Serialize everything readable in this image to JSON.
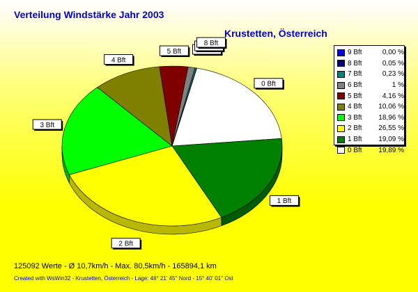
{
  "title": "Verteilung Windstärke  Jahr 2003",
  "subtitle": "Krustetten, Österreich",
  "stats": "125092 Werte   -   Ø 10,7km/h  -  Max. 80,5km/h   -    165894,1 km",
  "credit": "Created with WsWin32   -   Krustetten, Österreich   -   Lage: 48° 21' 45'' Nord - 15° 40' 01'' Ost",
  "chart_data": {
    "type": "pie",
    "title": "Verteilung Windstärke  Jahr 2003",
    "legend_position": "top-right",
    "slices": [
      {
        "label": "9 Bft",
        "value": 0.0,
        "pct_text": "0,00 %",
        "color": "#0000ff"
      },
      {
        "label": "8 Bft",
        "value": 0.05,
        "pct_text": "0,05 %",
        "color": "#000080"
      },
      {
        "label": "7 Bft",
        "value": 0.23,
        "pct_text": "0,23 %",
        "color": "#008080"
      },
      {
        "label": "6 Bft",
        "value": 1.0,
        "pct_text": "1 %",
        "color": "#808080"
      },
      {
        "label": "5 Bft",
        "value": 4.16,
        "pct_text": "4,16 %",
        "color": "#800000"
      },
      {
        "label": "4 Bft",
        "value": 10.06,
        "pct_text": "10,06 %",
        "color": "#808000"
      },
      {
        "label": "3 Bft",
        "value": 18.96,
        "pct_text": "18,96 %",
        "color": "#00ff00"
      },
      {
        "label": "2 Bft",
        "value": 26.55,
        "pct_text": "26,55 %",
        "color": "#ffff00"
      },
      {
        "label": "1 Bft",
        "value": 19.09,
        "pct_text": "19,09 %",
        "color": "#008000"
      },
      {
        "label": "0 Bft",
        "value": 19.89,
        "pct_text": "19,89 %",
        "color": "#ffffff"
      }
    ]
  }
}
